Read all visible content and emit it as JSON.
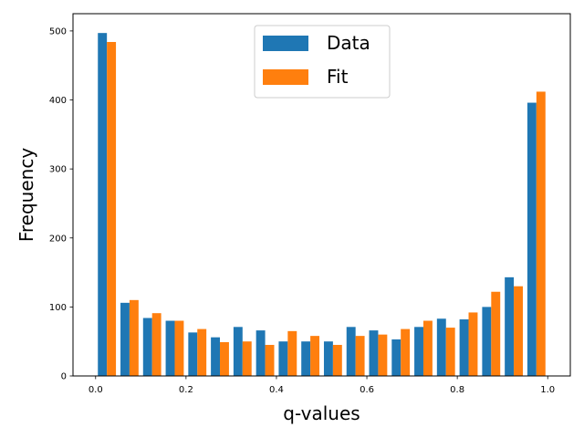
{
  "chart_data": {
    "type": "bar",
    "title": "",
    "xlabel": "q-values",
    "ylabel": "Frequency",
    "xlim": [
      -0.05,
      1.05
    ],
    "ylim": [
      0,
      525
    ],
    "xticks": [
      0.0,
      0.2,
      0.4,
      0.6,
      0.8,
      1.0
    ],
    "xtick_labels": [
      "0.0",
      "0.2",
      "0.4",
      "0.6",
      "0.8",
      "1.0"
    ],
    "yticks": [
      0,
      100,
      200,
      300,
      400,
      500
    ],
    "ytick_labels": [
      "0",
      "100",
      "200",
      "300",
      "400",
      "500"
    ],
    "grid": false,
    "legend_position": "top-center",
    "bin_width": 0.05,
    "bin_starts": [
      0.0,
      0.05,
      0.1,
      0.15,
      0.2,
      0.25,
      0.3,
      0.35,
      0.4,
      0.45,
      0.5,
      0.55,
      0.6,
      0.65,
      0.7,
      0.75,
      0.8,
      0.85,
      0.9,
      0.95
    ],
    "series": [
      {
        "name": "Data",
        "color": "#1f77b4",
        "values": [
          497,
          106,
          84,
          80,
          63,
          56,
          71,
          66,
          50,
          50,
          50,
          71,
          66,
          53,
          71,
          83,
          82,
          100,
          143,
          396
        ]
      },
      {
        "name": "Fit",
        "color": "#ff7f0e",
        "values": [
          484,
          110,
          91,
          80,
          68,
          49,
          50,
          45,
          65,
          58,
          45,
          58,
          60,
          68,
          80,
          70,
          92,
          122,
          130,
          412
        ]
      }
    ]
  }
}
